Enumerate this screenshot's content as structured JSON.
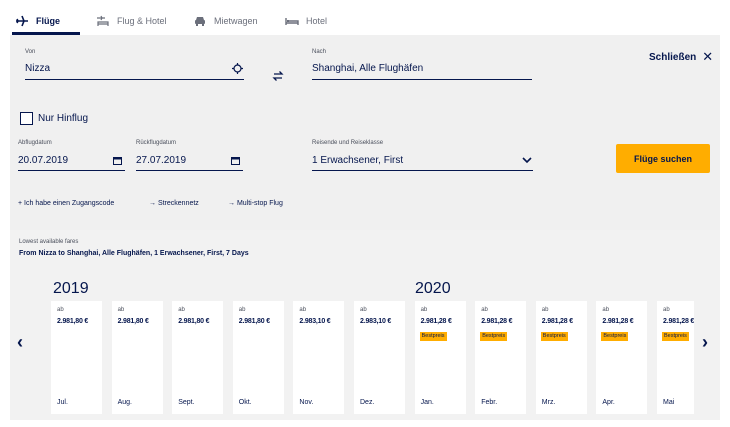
{
  "tabs": [
    {
      "label": "Flüge",
      "icon": "plane-icon",
      "active": true
    },
    {
      "label": "Flug & Hotel",
      "icon": "plane-hotel-icon",
      "active": false
    },
    {
      "label": "Mietwagen",
      "icon": "car-icon",
      "active": false
    },
    {
      "label": "Hotel",
      "icon": "bed-icon",
      "active": false
    }
  ],
  "search": {
    "from_label": "Von",
    "from_value": "Nizza",
    "to_label": "Nach",
    "to_value": "Shanghai, Alle Flughäfen",
    "close_label": "Schließen",
    "oneway_label": "Nur Hinflug",
    "depart_label": "Abflugdatum",
    "depart_value": "20.07.2019",
    "return_label": "Rückflugdatum",
    "return_value": "27.07.2019",
    "travelers_label": "Reisende und Reiseklasse",
    "travelers_value": "1 Erwachsener, First",
    "search_button": "Flüge suchen"
  },
  "links": [
    "+ Ich habe einen Zugangscode",
    "→ Streckennetz",
    "→ Multi-stop Flug"
  ],
  "fares": {
    "title": "Lowest available fares",
    "subtitle": "From Nizza to Shanghai, Alle Flughäfen, 1 Erwachsener, First, 7 Days",
    "years": [
      "2019",
      "2020"
    ],
    "ab_label": "ab",
    "best_label": "Bestpreis",
    "months": [
      {
        "month": "Jul.",
        "price": "2.981,80 €",
        "best": false
      },
      {
        "month": "Aug.",
        "price": "2.981,80 €",
        "best": false
      },
      {
        "month": "Sept.",
        "price": "2.981,80 €",
        "best": false
      },
      {
        "month": "Okt.",
        "price": "2.981,80 €",
        "best": false
      },
      {
        "month": "Nov.",
        "price": "2.983,10 €",
        "best": false
      },
      {
        "month": "Dez.",
        "price": "2.983,10 €",
        "best": false
      },
      {
        "month": "Jan.",
        "price": "2.981,28 €",
        "best": true
      },
      {
        "month": "Febr.",
        "price": "2.981,28 €",
        "best": true
      },
      {
        "month": "Mrz.",
        "price": "2.981,28 €",
        "best": true
      },
      {
        "month": "Apr.",
        "price": "2.981,28 €",
        "best": true
      },
      {
        "month": "Mai",
        "price": "2.981,28 €",
        "best": true
      }
    ]
  },
  "colors": {
    "brand": "#05164d",
    "accent": "#ffad00",
    "panel": "#f0f0f0"
  }
}
